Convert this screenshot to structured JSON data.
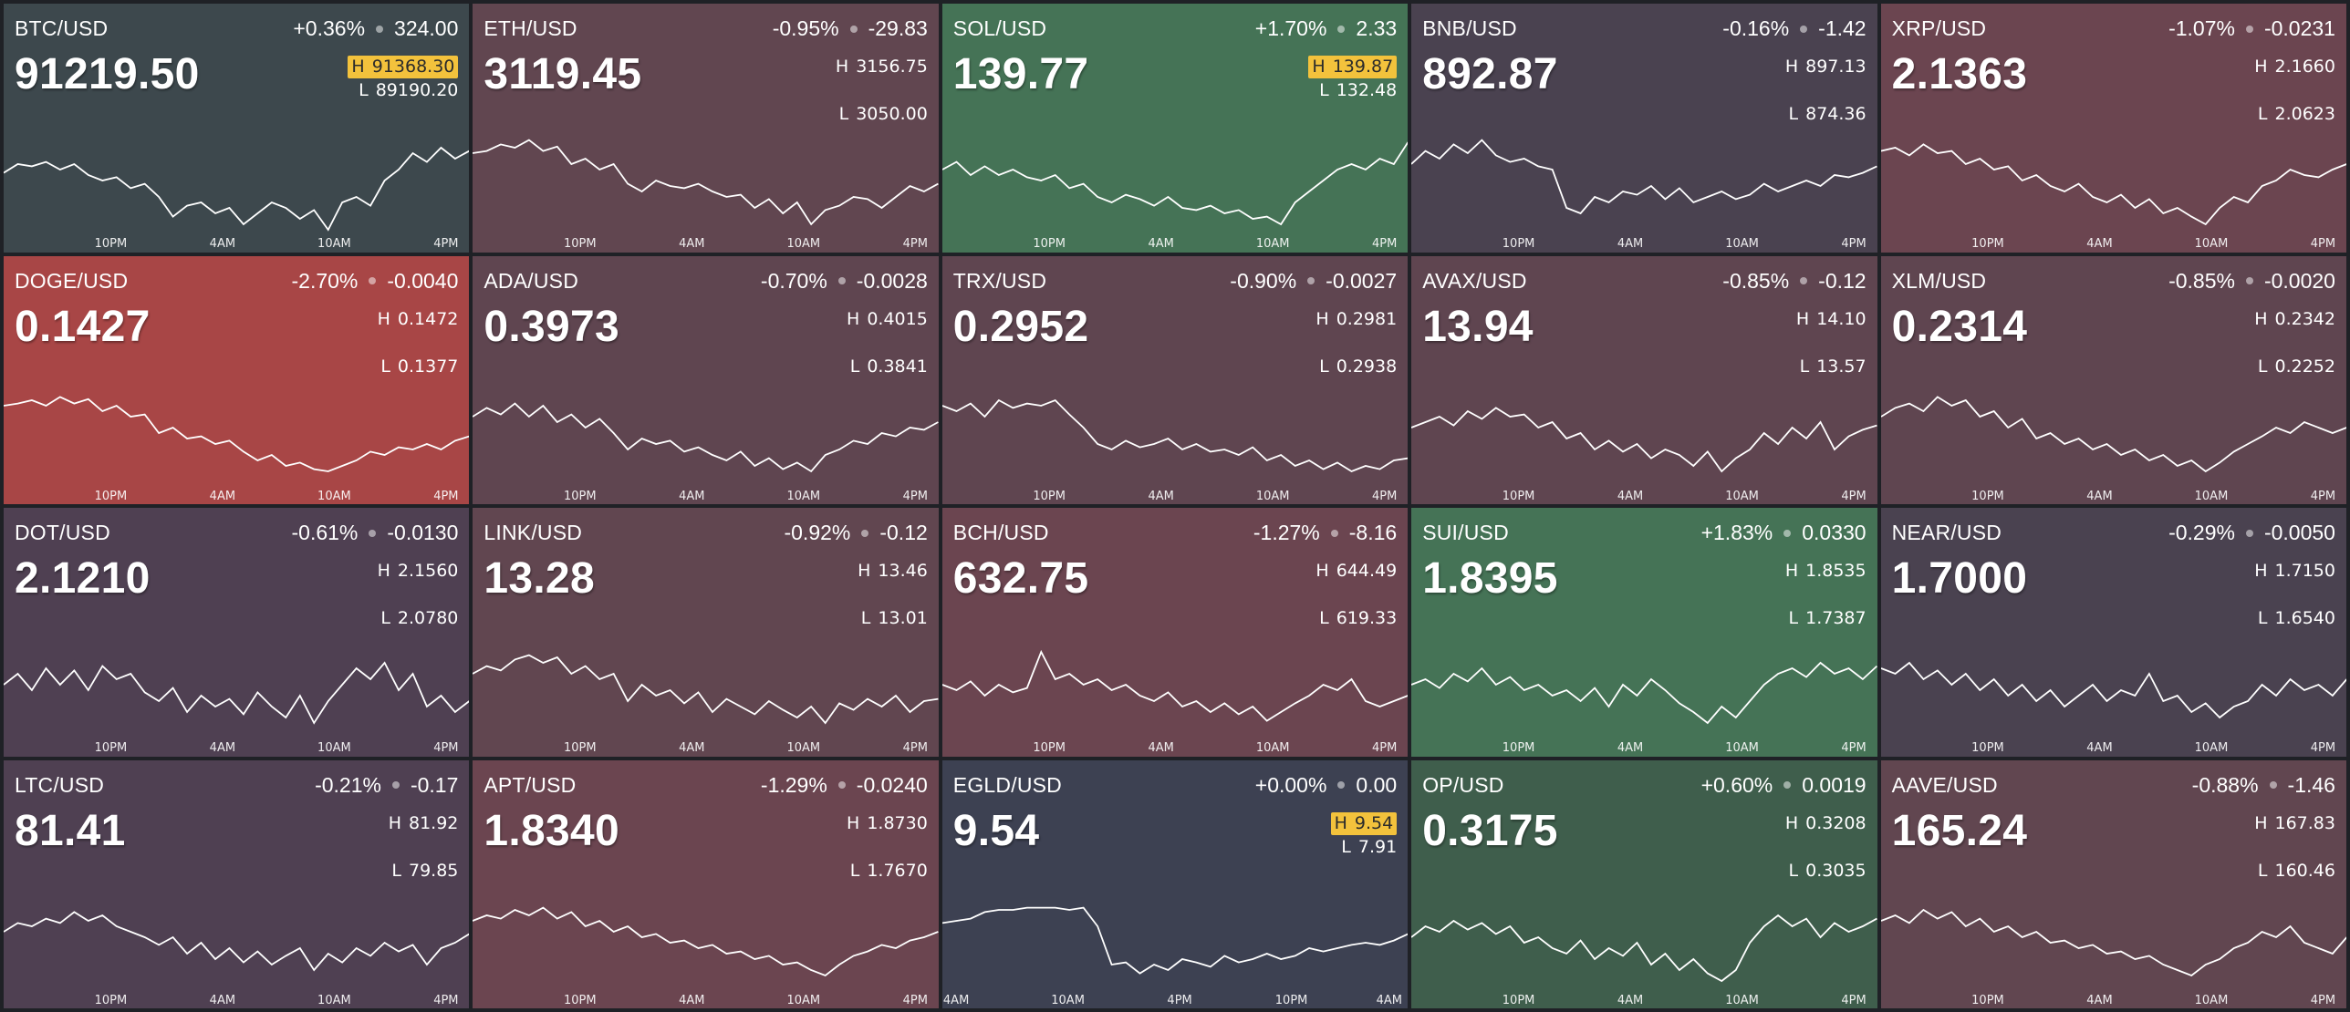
{
  "tickers": [
    {
      "symbol": "BTC/USD",
      "change_pct": "+0.36%",
      "change_abs": "324.00",
      "price": "91219.50",
      "high": "91368.30",
      "low": "89190.20",
      "high_flag": true,
      "bg": "#3d484d",
      "xticks": [
        "10PM",
        "4AM",
        "10AM",
        "4PM"
      ],
      "series": [
        0.52,
        0.6,
        0.58,
        0.62,
        0.55,
        0.6,
        0.5,
        0.45,
        0.48,
        0.38,
        0.42,
        0.3,
        0.12,
        0.22,
        0.25,
        0.15,
        0.2,
        0.05,
        0.15,
        0.25,
        0.2,
        0.1,
        0.18,
        0.0,
        0.25,
        0.3,
        0.22,
        0.45,
        0.55,
        0.7,
        0.62,
        0.75,
        0.65,
        0.72
      ]
    },
    {
      "symbol": "ETH/USD",
      "change_pct": "-0.95%",
      "change_abs": "-29.83",
      "price": "3119.45",
      "high": "3156.75",
      "low": "3050.00",
      "high_flag": false,
      "bg": "#614650",
      "xticks": [
        "10PM",
        "4AM",
        "10AM",
        "4PM"
      ],
      "series": [
        0.7,
        0.72,
        0.78,
        0.75,
        0.82,
        0.72,
        0.76,
        0.6,
        0.65,
        0.55,
        0.6,
        0.42,
        0.35,
        0.45,
        0.4,
        0.38,
        0.42,
        0.35,
        0.3,
        0.32,
        0.2,
        0.28,
        0.15,
        0.25,
        0.05,
        0.18,
        0.22,
        0.3,
        0.28,
        0.2,
        0.3,
        0.4,
        0.35,
        0.42
      ]
    },
    {
      "symbol": "SOL/USD",
      "change_pct": "+1.70%",
      "change_abs": "2.33",
      "price": "139.77",
      "high": "139.87",
      "low": "132.48",
      "high_flag": true,
      "bg": "#457356",
      "xticks": [
        "10PM",
        "4AM",
        "10AM",
        "4PM"
      ],
      "series": [
        0.55,
        0.62,
        0.5,
        0.58,
        0.5,
        0.55,
        0.48,
        0.45,
        0.5,
        0.38,
        0.42,
        0.3,
        0.25,
        0.32,
        0.28,
        0.22,
        0.3,
        0.2,
        0.18,
        0.22,
        0.15,
        0.18,
        0.1,
        0.12,
        0.05,
        0.25,
        0.35,
        0.45,
        0.55,
        0.6,
        0.55,
        0.65,
        0.6,
        0.8
      ]
    },
    {
      "symbol": "BNB/USD",
      "change_pct": "-0.16%",
      "change_abs": "-1.42",
      "price": "892.87",
      "high": "897.13",
      "low": "874.36",
      "high_flag": false,
      "bg": "#4a4250",
      "xticks": [
        "10PM",
        "4AM",
        "10AM",
        "4PM"
      ],
      "series": [
        0.6,
        0.72,
        0.65,
        0.78,
        0.7,
        0.82,
        0.68,
        0.62,
        0.65,
        0.58,
        0.55,
        0.2,
        0.15,
        0.3,
        0.25,
        0.35,
        0.32,
        0.4,
        0.28,
        0.38,
        0.25,
        0.3,
        0.35,
        0.28,
        0.32,
        0.42,
        0.35,
        0.4,
        0.45,
        0.4,
        0.5,
        0.48,
        0.52,
        0.58
      ]
    },
    {
      "symbol": "XRP/USD",
      "change_pct": "-1.07%",
      "change_abs": "-0.0231",
      "price": "2.1363",
      "high": "2.1660",
      "low": "2.0623",
      "high_flag": false,
      "bg": "#6b4550",
      "xticks": [
        "10PM",
        "4AM",
        "10AM",
        "4PM"
      ],
      "series": [
        0.72,
        0.75,
        0.68,
        0.78,
        0.7,
        0.72,
        0.6,
        0.65,
        0.55,
        0.58,
        0.45,
        0.5,
        0.4,
        0.35,
        0.42,
        0.3,
        0.25,
        0.32,
        0.2,
        0.28,
        0.15,
        0.2,
        0.12,
        0.05,
        0.2,
        0.3,
        0.25,
        0.4,
        0.45,
        0.55,
        0.5,
        0.48,
        0.55,
        0.6
      ]
    },
    {
      "symbol": "DOGE/USD",
      "change_pct": "-2.70%",
      "change_abs": "-0.0040",
      "price": "0.1427",
      "high": "0.1472",
      "low": "0.1377",
      "high_flag": false,
      "bg": "#a84646",
      "xticks": [
        "10PM",
        "4AM",
        "10AM",
        "4PM"
      ],
      "series": [
        0.7,
        0.72,
        0.75,
        0.7,
        0.78,
        0.72,
        0.76,
        0.65,
        0.7,
        0.6,
        0.62,
        0.45,
        0.5,
        0.4,
        0.42,
        0.35,
        0.38,
        0.28,
        0.2,
        0.25,
        0.15,
        0.18,
        0.12,
        0.1,
        0.15,
        0.2,
        0.28,
        0.25,
        0.32,
        0.3,
        0.35,
        0.3,
        0.38,
        0.42
      ]
    },
    {
      "symbol": "ADA/USD",
      "change_pct": "-0.70%",
      "change_abs": "-0.0028",
      "price": "0.3973",
      "high": "0.4015",
      "low": "0.3841",
      "high_flag": false,
      "bg": "#5f4550",
      "xticks": [
        "10PM",
        "4AM",
        "10AM",
        "4PM"
      ],
      "series": [
        0.6,
        0.68,
        0.62,
        0.72,
        0.6,
        0.7,
        0.55,
        0.62,
        0.5,
        0.58,
        0.45,
        0.3,
        0.4,
        0.35,
        0.38,
        0.28,
        0.32,
        0.25,
        0.2,
        0.28,
        0.15,
        0.22,
        0.12,
        0.18,
        0.1,
        0.25,
        0.3,
        0.38,
        0.35,
        0.45,
        0.42,
        0.5,
        0.48,
        0.55
      ]
    },
    {
      "symbol": "TRX/USD",
      "change_pct": "-0.90%",
      "change_abs": "-0.0027",
      "price": "0.2952",
      "high": "0.2981",
      "low": "0.2938",
      "high_flag": false,
      "bg": "#5f4550",
      "xticks": [
        "10PM",
        "4AM",
        "10AM",
        "4PM"
      ],
      "series": [
        0.7,
        0.65,
        0.72,
        0.6,
        0.75,
        0.68,
        0.72,
        0.7,
        0.75,
        0.62,
        0.5,
        0.35,
        0.3,
        0.38,
        0.32,
        0.35,
        0.4,
        0.3,
        0.35,
        0.28,
        0.3,
        0.25,
        0.32,
        0.2,
        0.25,
        0.15,
        0.2,
        0.12,
        0.18,
        0.1,
        0.15,
        0.12,
        0.2,
        0.22
      ]
    },
    {
      "symbol": "AVAX/USD",
      "change_pct": "-0.85%",
      "change_abs": "-0.12",
      "price": "13.94",
      "high": "14.10",
      "low": "13.57",
      "high_flag": false,
      "bg": "#5f4550",
      "xticks": [
        "10PM",
        "4AM",
        "10AM",
        "4PM"
      ],
      "series": [
        0.5,
        0.55,
        0.6,
        0.52,
        0.65,
        0.58,
        0.68,
        0.6,
        0.62,
        0.5,
        0.55,
        0.4,
        0.45,
        0.3,
        0.38,
        0.28,
        0.35,
        0.22,
        0.3,
        0.25,
        0.15,
        0.28,
        0.1,
        0.22,
        0.3,
        0.45,
        0.35,
        0.5,
        0.4,
        0.55,
        0.3,
        0.42,
        0.48,
        0.52
      ]
    },
    {
      "symbol": "XLM/USD",
      "change_pct": "-0.85%",
      "change_abs": "-0.0020",
      "price": "0.2314",
      "high": "0.2342",
      "low": "0.2252",
      "high_flag": false,
      "bg": "#5f4550",
      "xticks": [
        "10PM",
        "4AM",
        "10AM",
        "4PM"
      ],
      "series": [
        0.6,
        0.68,
        0.72,
        0.65,
        0.78,
        0.7,
        0.75,
        0.6,
        0.65,
        0.5,
        0.58,
        0.4,
        0.45,
        0.35,
        0.4,
        0.3,
        0.35,
        0.25,
        0.3,
        0.2,
        0.25,
        0.15,
        0.2,
        0.1,
        0.18,
        0.28,
        0.35,
        0.42,
        0.5,
        0.45,
        0.55,
        0.5,
        0.45,
        0.5
      ]
    },
    {
      "symbol": "DOT/USD",
      "change_pct": "-0.61%",
      "change_abs": "-0.0130",
      "price": "2.1210",
      "high": "2.1560",
      "low": "2.0780",
      "high_flag": false,
      "bg": "#4f4052",
      "xticks": [
        "10PM",
        "4AM",
        "10AM",
        "4PM"
      ],
      "series": [
        0.45,
        0.55,
        0.4,
        0.6,
        0.45,
        0.58,
        0.4,
        0.62,
        0.5,
        0.55,
        0.38,
        0.3,
        0.42,
        0.2,
        0.35,
        0.25,
        0.32,
        0.18,
        0.38,
        0.25,
        0.15,
        0.35,
        0.1,
        0.3,
        0.45,
        0.6,
        0.5,
        0.65,
        0.4,
        0.55,
        0.25,
        0.35,
        0.2,
        0.3
      ]
    },
    {
      "symbol": "LINK/USD",
      "change_pct": "-0.92%",
      "change_abs": "-0.12",
      "price": "13.28",
      "high": "13.46",
      "low": "13.01",
      "high_flag": false,
      "bg": "#614650",
      "xticks": [
        "10PM",
        "4AM",
        "10AM",
        "4PM"
      ],
      "series": [
        0.55,
        0.62,
        0.58,
        0.68,
        0.72,
        0.65,
        0.7,
        0.55,
        0.62,
        0.5,
        0.55,
        0.3,
        0.45,
        0.35,
        0.4,
        0.28,
        0.38,
        0.2,
        0.32,
        0.25,
        0.18,
        0.3,
        0.22,
        0.15,
        0.25,
        0.1,
        0.28,
        0.22,
        0.32,
        0.25,
        0.35,
        0.2,
        0.3,
        0.32
      ]
    },
    {
      "symbol": "BCH/USD",
      "change_pct": "-1.27%",
      "change_abs": "-8.16",
      "price": "632.75",
      "high": "644.49",
      "low": "619.33",
      "high_flag": false,
      "bg": "#6b4550",
      "xticks": [
        "10PM",
        "4AM",
        "10AM",
        "4PM"
      ],
      "series": [
        0.45,
        0.4,
        0.48,
        0.35,
        0.45,
        0.38,
        0.42,
        0.75,
        0.5,
        0.55,
        0.45,
        0.5,
        0.4,
        0.45,
        0.35,
        0.3,
        0.38,
        0.25,
        0.3,
        0.2,
        0.28,
        0.18,
        0.25,
        0.12,
        0.2,
        0.28,
        0.35,
        0.45,
        0.4,
        0.5,
        0.3,
        0.25,
        0.3,
        0.35
      ]
    },
    {
      "symbol": "SUI/USD",
      "change_pct": "+1.83%",
      "change_abs": "0.0330",
      "price": "1.8395",
      "high": "1.8535",
      "low": "1.7387",
      "high_flag": false,
      "bg": "#457356",
      "xticks": [
        "10PM",
        "4AM",
        "10AM",
        "4PM"
      ],
      "series": [
        0.45,
        0.5,
        0.42,
        0.55,
        0.48,
        0.6,
        0.45,
        0.52,
        0.4,
        0.45,
        0.35,
        0.4,
        0.3,
        0.42,
        0.25,
        0.45,
        0.35,
        0.5,
        0.4,
        0.28,
        0.2,
        0.1,
        0.25,
        0.15,
        0.3,
        0.45,
        0.55,
        0.6,
        0.52,
        0.65,
        0.55,
        0.6,
        0.5,
        0.62
      ]
    },
    {
      "symbol": "NEAR/USD",
      "change_pct": "-0.29%",
      "change_abs": "-0.0050",
      "price": "1.7000",
      "high": "1.7150",
      "low": "1.6540",
      "high_flag": false,
      "bg": "#4a4250",
      "xticks": [
        "10PM",
        "4AM",
        "10AM",
        "4PM"
      ],
      "series": [
        0.6,
        0.55,
        0.65,
        0.5,
        0.58,
        0.45,
        0.55,
        0.4,
        0.5,
        0.35,
        0.45,
        0.3,
        0.4,
        0.25,
        0.35,
        0.45,
        0.3,
        0.4,
        0.35,
        0.55,
        0.3,
        0.35,
        0.2,
        0.28,
        0.15,
        0.25,
        0.3,
        0.45,
        0.35,
        0.5,
        0.4,
        0.45,
        0.35,
        0.5
      ]
    },
    {
      "symbol": "LTC/USD",
      "change_pct": "-0.21%",
      "change_abs": "-0.17",
      "price": "81.41",
      "high": "81.92",
      "low": "79.85",
      "high_flag": false,
      "bg": "#4f4052",
      "xticks": [
        "10PM",
        "4AM",
        "10AM",
        "4PM"
      ],
      "series": [
        0.5,
        0.58,
        0.55,
        0.62,
        0.58,
        0.68,
        0.6,
        0.65,
        0.55,
        0.5,
        0.45,
        0.38,
        0.45,
        0.3,
        0.4,
        0.25,
        0.35,
        0.22,
        0.32,
        0.2,
        0.28,
        0.35,
        0.15,
        0.3,
        0.22,
        0.35,
        0.28,
        0.4,
        0.32,
        0.38,
        0.2,
        0.35,
        0.4,
        0.48
      ]
    },
    {
      "symbol": "APT/USD",
      "change_pct": "-1.29%",
      "change_abs": "-0.0240",
      "price": "1.8340",
      "high": "1.8730",
      "low": "1.7670",
      "high_flag": false,
      "bg": "#6b4550",
      "xticks": [
        "10PM",
        "4AM",
        "10AM",
        "4PM"
      ],
      "series": [
        0.6,
        0.65,
        0.62,
        0.7,
        0.65,
        0.72,
        0.62,
        0.68,
        0.55,
        0.6,
        0.5,
        0.55,
        0.45,
        0.48,
        0.4,
        0.42,
        0.35,
        0.38,
        0.3,
        0.32,
        0.25,
        0.28,
        0.2,
        0.22,
        0.15,
        0.1,
        0.2,
        0.28,
        0.32,
        0.38,
        0.35,
        0.42,
        0.45,
        0.5
      ]
    },
    {
      "symbol": "EGLD/USD",
      "change_pct": "+0.00%",
      "change_abs": "0.00",
      "price": "9.54",
      "high": "9.54",
      "low": "7.91",
      "high_flag": true,
      "bg": "#3d4152",
      "xticks": [
        "4AM",
        "10AM",
        "4PM",
        "10PM",
        "4AM"
      ],
      "series": [
        0.58,
        0.6,
        0.62,
        0.68,
        0.7,
        0.7,
        0.72,
        0.72,
        0.72,
        0.7,
        0.72,
        0.55,
        0.2,
        0.22,
        0.12,
        0.2,
        0.15,
        0.25,
        0.22,
        0.18,
        0.28,
        0.22,
        0.25,
        0.3,
        0.25,
        0.28,
        0.35,
        0.32,
        0.35,
        0.38,
        0.4,
        0.38,
        0.42,
        0.48
      ]
    },
    {
      "symbol": "OP/USD",
      "change_pct": "+0.60%",
      "change_abs": "0.0019",
      "price": "0.3175",
      "high": "0.3208",
      "low": "0.3035",
      "high_flag": false,
      "bg": "#3f5e4c",
      "xticks": [
        "10PM",
        "4AM",
        "10AM",
        "4PM"
      ],
      "series": [
        0.45,
        0.55,
        0.5,
        0.6,
        0.52,
        0.58,
        0.48,
        0.55,
        0.4,
        0.45,
        0.35,
        0.3,
        0.42,
        0.25,
        0.35,
        0.28,
        0.4,
        0.2,
        0.3,
        0.15,
        0.25,
        0.12,
        0.05,
        0.15,
        0.4,
        0.55,
        0.65,
        0.55,
        0.62,
        0.45,
        0.58,
        0.5,
        0.55,
        0.62
      ]
    },
    {
      "symbol": "AAVE/USD",
      "change_pct": "-0.88%",
      "change_abs": "-1.46",
      "price": "165.24",
      "high": "167.83",
      "low": "160.46",
      "high_flag": false,
      "bg": "#614650",
      "xticks": [
        "10PM",
        "4AM",
        "10AM",
        "4PM"
      ],
      "series": [
        0.6,
        0.65,
        0.58,
        0.7,
        0.62,
        0.68,
        0.55,
        0.62,
        0.5,
        0.55,
        0.45,
        0.5,
        0.4,
        0.42,
        0.35,
        0.38,
        0.3,
        0.32,
        0.25,
        0.28,
        0.2,
        0.15,
        0.1,
        0.2,
        0.25,
        0.35,
        0.4,
        0.5,
        0.45,
        0.55,
        0.4,
        0.35,
        0.3,
        0.45
      ]
    }
  ]
}
